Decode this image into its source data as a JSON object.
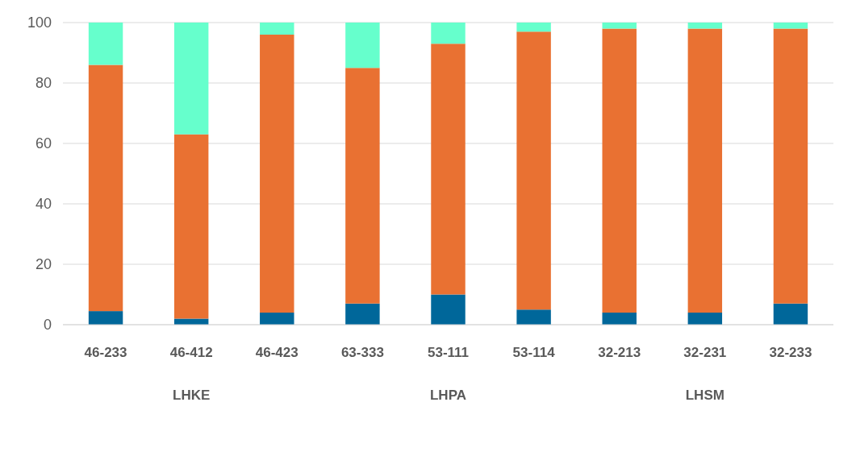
{
  "chart_data": {
    "type": "bar",
    "stacked": true,
    "categories": [
      "46-233",
      "46-412",
      "46-423",
      "63-333",
      "53-111",
      "53-114",
      "32-213",
      "32-231",
      "32-233"
    ],
    "series": [
      {
        "color": "#00679a",
        "values": [
          4.5,
          2,
          4,
          7,
          10,
          5,
          4,
          4,
          7
        ]
      },
      {
        "color": "#e97132",
        "values": [
          81.5,
          61,
          92,
          78,
          83,
          92,
          94,
          94,
          91
        ]
      },
      {
        "color": "#66ffcc",
        "values": [
          14,
          37,
          4,
          15,
          7,
          3,
          2,
          2,
          2
        ]
      }
    ],
    "annotations": [
      "LHKE",
      "LHPA",
      "LHSM"
    ],
    "ylim": [
      0,
      100
    ],
    "yticks": [
      0,
      20,
      40,
      60,
      80,
      100
    ],
    "grid": "y"
  }
}
